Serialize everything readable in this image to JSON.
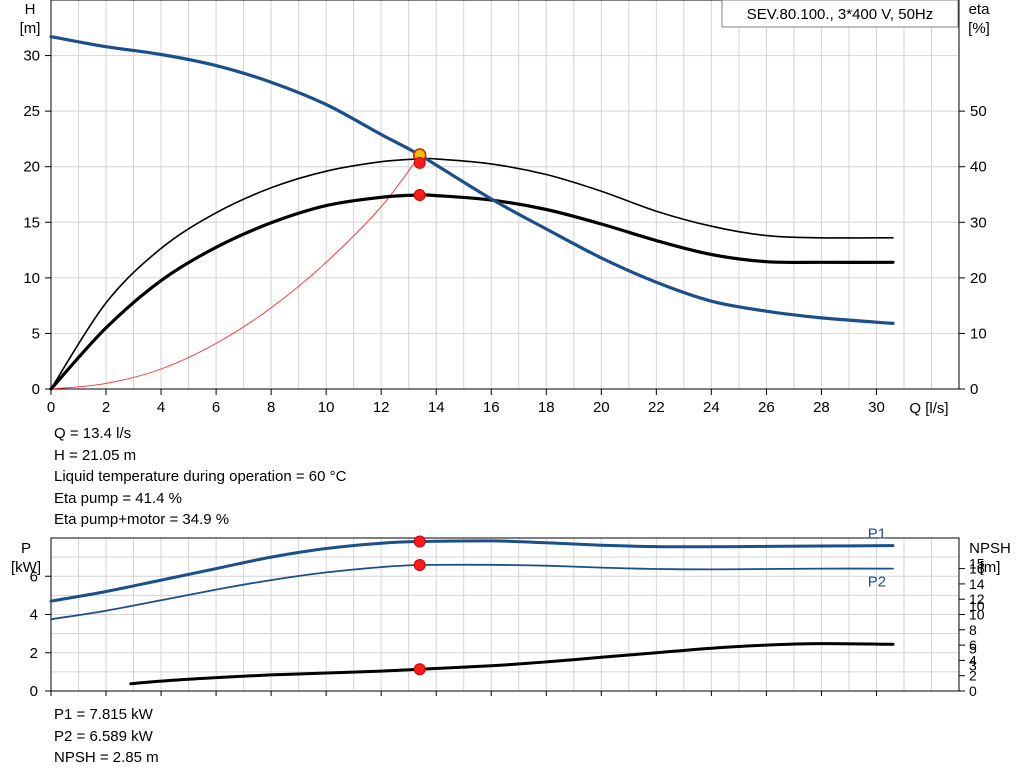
{
  "chart_data": [
    {
      "type": "line",
      "title": "SEV.80.100., 3*400 V, 50Hz",
      "xlabel": "Q [l/s]",
      "ylabel": "H\n[m]",
      "y2label": "eta\n[%]",
      "xlim": [
        0,
        33
      ],
      "ylim": [
        0,
        35
      ],
      "y2lim": [
        0,
        70
      ],
      "xticks": [
        0,
        2,
        4,
        6,
        8,
        10,
        12,
        14,
        16,
        18,
        20,
        22,
        24,
        26,
        28,
        30
      ],
      "yticks": [
        0,
        5,
        10,
        15,
        20,
        25,
        30
      ],
      "y2ticks": [
        0,
        10,
        20,
        30,
        40,
        50
      ],
      "grid": true,
      "series": [
        {
          "key": "H",
          "axis": "left",
          "color": "#1a4f8a",
          "width": 3.2,
          "x": [
            0,
            2,
            4,
            6,
            8,
            10,
            12,
            13.4,
            16,
            18,
            20,
            22,
            24,
            26,
            28,
            30.6
          ],
          "values": [
            31.7,
            30.8,
            30.1,
            29.1,
            27.6,
            25.6,
            22.9,
            21.05,
            17.1,
            14.4,
            11.8,
            9.6,
            7.9,
            7.0,
            6.4,
            5.9
          ]
        },
        {
          "key": "eta_pump",
          "axis": "right",
          "color": "#000000",
          "width": 1.6,
          "x": [
            0,
            2,
            4,
            6,
            8,
            10,
            12,
            13.4,
            14,
            16,
            18,
            20,
            22,
            24,
            26,
            28,
            30.6
          ],
          "values": [
            0,
            15.5,
            25.3,
            31.7,
            36.2,
            39.2,
            40.9,
            41.4,
            41.4,
            40.5,
            38.6,
            35.6,
            32.0,
            29.3,
            27.6,
            27.2,
            27.2
          ]
        },
        {
          "key": "eta_pump_motor",
          "axis": "right",
          "color": "#000000",
          "width": 3.2,
          "x": [
            0,
            2,
            4,
            6,
            8,
            10,
            12,
            13.4,
            14,
            16,
            18,
            20,
            22,
            24,
            26,
            28,
            30.6
          ],
          "values": [
            0,
            11.0,
            19.5,
            25.5,
            29.9,
            33.0,
            34.5,
            34.9,
            34.8,
            34.0,
            32.3,
            29.7,
            26.7,
            24.2,
            22.9,
            22.8,
            22.8
          ]
        },
        {
          "key": "system",
          "axis": "left",
          "color": "#ff2a2a",
          "width": 0.9,
          "x": [
            0,
            2,
            4,
            6,
            8,
            10,
            12,
            13.4
          ],
          "values": [
            0,
            0.5,
            1.8,
            4.1,
            7.3,
            11.4,
            16.4,
            21.05
          ]
        }
      ],
      "operating_point": {
        "Q": 13.4,
        "H": 21.05,
        "eta_pump": 41.4,
        "eta_pump_motor": 34.9
      },
      "annotations": [
        "Q = 13.4 l/s",
        "H = 21.05 m",
        "Liquid temperature during operation = 60 °C",
        "Eta pump = 41.4 %",
        "Eta pump+motor = 34.9 %"
      ]
    },
    {
      "type": "line",
      "ylabel": "P\n[kW]",
      "y2label": "NPSH\n[m]",
      "xlim": [
        0,
        33
      ],
      "ylim": [
        0,
        8
      ],
      "y2lim": [
        0,
        20
      ],
      "yticks": [
        0,
        2,
        4,
        6
      ],
      "y2ticks": [
        0,
        2,
        4,
        6,
        8,
        10,
        12,
        14,
        16
      ],
      "y2ticks_secondary": [
        0,
        3,
        5,
        10,
        15
      ],
      "grid": true,
      "series": [
        {
          "key": "P1",
          "name": "P1",
          "axis": "left",
          "color": "#1a4f8a",
          "width": 3.0,
          "x": [
            0,
            2,
            4,
            6,
            8,
            10,
            12,
            13.4,
            16,
            18,
            20,
            22,
            24,
            26,
            28,
            30.6
          ],
          "values": [
            4.7,
            5.2,
            5.8,
            6.4,
            7.0,
            7.45,
            7.73,
            7.815,
            7.85,
            7.75,
            7.62,
            7.55,
            7.54,
            7.56,
            7.58,
            7.6
          ]
        },
        {
          "key": "P2",
          "name": "P2",
          "axis": "left",
          "color": "#1a4f8a",
          "width": 1.8,
          "x": [
            0,
            2,
            4,
            6,
            8,
            10,
            12,
            13.4,
            16,
            18,
            20,
            22,
            24,
            26,
            28,
            30.6
          ],
          "values": [
            3.75,
            4.2,
            4.75,
            5.3,
            5.8,
            6.2,
            6.48,
            6.589,
            6.6,
            6.55,
            6.45,
            6.38,
            6.36,
            6.38,
            6.4,
            6.4
          ]
        },
        {
          "key": "NPSH",
          "axis": "right",
          "color": "#000000",
          "width": 3.0,
          "x": [
            2.9,
            4,
            6,
            8,
            10,
            12,
            13.4,
            16,
            18,
            20,
            22,
            24,
            26,
            28,
            30.6
          ],
          "values": [
            0.95,
            1.3,
            1.75,
            2.1,
            2.35,
            2.6,
            2.85,
            3.3,
            3.8,
            4.4,
            5.0,
            5.6,
            6.0,
            6.2,
            6.1
          ]
        }
      ],
      "operating_point": {
        "Q": 13.4,
        "P1": 7.815,
        "P2": 6.589,
        "NPSH": 2.85
      },
      "annotations": [
        "P1 = 7.815 kW",
        "P2 = 6.589 kW",
        "NPSH = 2.85 m"
      ]
    }
  ]
}
